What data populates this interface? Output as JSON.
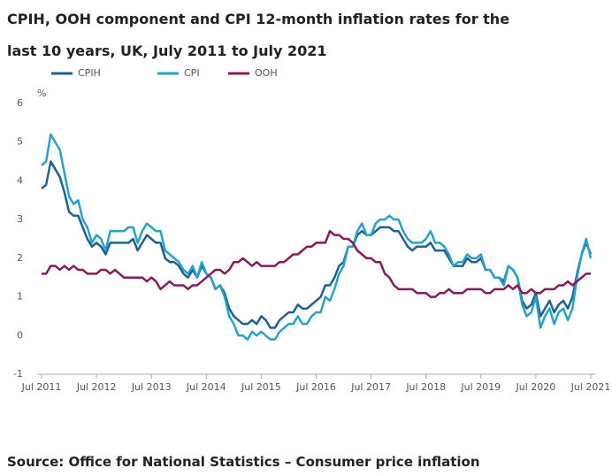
{
  "chart_data": {
    "type": "line",
    "title": "CPIH, OOH component and CPI 12-month inflation rates for the last 10 years, UK, July 2011 to July 2021",
    "y_label": "%",
    "source": "Source: Office for National Statistics – Consumer price inflation",
    "categories": [
      "Jul 2011",
      null,
      null,
      null,
      null,
      null,
      null,
      null,
      null,
      null,
      null,
      null,
      "Jul 2012",
      null,
      null,
      null,
      null,
      null,
      null,
      null,
      null,
      null,
      null,
      null,
      "Jul 2013",
      null,
      null,
      null,
      null,
      null,
      null,
      null,
      null,
      null,
      null,
      null,
      "Jul 2014",
      null,
      null,
      null,
      null,
      null,
      null,
      null,
      null,
      null,
      null,
      null,
      "Jul 2015",
      null,
      null,
      null,
      null,
      null,
      null,
      null,
      null,
      null,
      null,
      null,
      "Jul 2016",
      null,
      null,
      null,
      null,
      null,
      null,
      null,
      null,
      null,
      null,
      null,
      "Jul 2017",
      null,
      null,
      null,
      null,
      null,
      null,
      null,
      null,
      null,
      null,
      null,
      "Jul 2018",
      null,
      null,
      null,
      null,
      null,
      null,
      null,
      null,
      null,
      null,
      null,
      "Jul 2019",
      null,
      null,
      null,
      null,
      null,
      null,
      null,
      null,
      null,
      null,
      null,
      "Jul 2020",
      null,
      null,
      null,
      null,
      null,
      null,
      null,
      null,
      null,
      null,
      null,
      "Jul 2021"
    ],
    "ylim": [
      -1,
      6
    ],
    "yticks": [
      -1,
      0,
      1,
      2,
      3,
      4,
      5,
      6
    ],
    "grid": false,
    "series": [
      {
        "name": "CPIH",
        "color": "#206095",
        "values": [
          3.8,
          3.9,
          4.5,
          4.3,
          4.1,
          3.7,
          3.2,
          3.1,
          3.1,
          2.8,
          2.5,
          2.3,
          2.4,
          2.3,
          2.1,
          2.4,
          2.4,
          2.4,
          2.4,
          2.4,
          2.5,
          2.2,
          2.4,
          2.6,
          2.5,
          2.4,
          2.4,
          2.0,
          1.9,
          1.9,
          1.8,
          1.6,
          1.5,
          1.7,
          1.5,
          1.8,
          1.6,
          1.5,
          1.2,
          1.3,
          1.1,
          0.7,
          0.5,
          0.4,
          0.3,
          0.3,
          0.4,
          0.3,
          0.5,
          0.4,
          0.2,
          0.2,
          0.4,
          0.5,
          0.6,
          0.6,
          0.8,
          0.7,
          0.7,
          0.8,
          0.9,
          1.0,
          1.3,
          1.3,
          1.5,
          1.8,
          1.9,
          2.3,
          2.3,
          2.6,
          2.7,
          2.6,
          2.6,
          2.7,
          2.8,
          2.8,
          2.8,
          2.7,
          2.7,
          2.5,
          2.3,
          2.2,
          2.3,
          2.3,
          2.3,
          2.4,
          2.2,
          2.2,
          2.2,
          2.0,
          1.8,
          1.8,
          1.8,
          2.0,
          1.9,
          1.9,
          2.0,
          1.7,
          1.7,
          1.5,
          1.5,
          1.4,
          1.8,
          1.7,
          1.5,
          0.9,
          0.7,
          0.8,
          1.1,
          0.5,
          0.7,
          0.9,
          0.6,
          0.8,
          0.9,
          0.7,
          1.0,
          1.6,
          2.1,
          2.4,
          2.1
        ]
      },
      {
        "name": "CPI",
        "color": "#27a0cc",
        "values": [
          4.4,
          4.5,
          5.2,
          5.0,
          4.8,
          4.2,
          3.6,
          3.4,
          3.5,
          3.0,
          2.8,
          2.4,
          2.6,
          2.5,
          2.2,
          2.7,
          2.7,
          2.7,
          2.7,
          2.8,
          2.8,
          2.4,
          2.7,
          2.9,
          2.8,
          2.7,
          2.7,
          2.2,
          2.1,
          2.0,
          1.9,
          1.7,
          1.6,
          1.8,
          1.5,
          1.9,
          1.6,
          1.5,
          1.2,
          1.3,
          1.0,
          0.5,
          0.3,
          0.0,
          0.0,
          -0.1,
          0.1,
          0.0,
          0.1,
          0.0,
          -0.1,
          -0.1,
          0.1,
          0.2,
          0.3,
          0.3,
          0.5,
          0.3,
          0.3,
          0.5,
          0.6,
          0.6,
          1.0,
          0.9,
          1.2,
          1.6,
          1.8,
          2.3,
          2.3,
          2.7,
          2.9,
          2.6,
          2.6,
          2.9,
          3.0,
          3.0,
          3.1,
          3.0,
          3.0,
          2.7,
          2.5,
          2.4,
          2.4,
          2.4,
          2.5,
          2.7,
          2.4,
          2.4,
          2.3,
          2.1,
          1.8,
          1.9,
          1.9,
          2.1,
          2.0,
          2.0,
          2.1,
          1.7,
          1.7,
          1.5,
          1.5,
          1.3,
          1.8,
          1.7,
          1.5,
          0.8,
          0.5,
          0.6,
          1.0,
          0.2,
          0.5,
          0.7,
          0.3,
          0.6,
          0.7,
          0.4,
          0.7,
          1.5,
          2.1,
          2.5,
          2.0
        ]
      },
      {
        "name": "OOH",
        "color": "#871a5b",
        "values": [
          1.6,
          1.6,
          1.8,
          1.8,
          1.7,
          1.8,
          1.7,
          1.8,
          1.7,
          1.7,
          1.6,
          1.6,
          1.6,
          1.7,
          1.7,
          1.6,
          1.7,
          1.6,
          1.5,
          1.5,
          1.5,
          1.5,
          1.5,
          1.4,
          1.5,
          1.4,
          1.2,
          1.3,
          1.4,
          1.3,
          1.3,
          1.3,
          1.2,
          1.3,
          1.3,
          1.4,
          1.5,
          1.6,
          1.7,
          1.7,
          1.6,
          1.7,
          1.9,
          1.9,
          2.0,
          1.9,
          1.8,
          1.9,
          1.8,
          1.8,
          1.8,
          1.8,
          1.9,
          1.9,
          2.0,
          2.1,
          2.1,
          2.2,
          2.3,
          2.3,
          2.4,
          2.4,
          2.4,
          2.7,
          2.6,
          2.6,
          2.5,
          2.5,
          2.4,
          2.2,
          2.1,
          2.0,
          2.0,
          1.9,
          1.9,
          1.6,
          1.5,
          1.3,
          1.2,
          1.2,
          1.2,
          1.2,
          1.1,
          1.1,
          1.1,
          1.0,
          1.0,
          1.1,
          1.1,
          1.2,
          1.1,
          1.1,
          1.1,
          1.2,
          1.2,
          1.2,
          1.2,
          1.1,
          1.1,
          1.2,
          1.2,
          1.2,
          1.3,
          1.2,
          1.3,
          1.1,
          1.1,
          1.2,
          1.1,
          1.1,
          1.2,
          1.2,
          1.2,
          1.3,
          1.3,
          1.4,
          1.3,
          1.4,
          1.5,
          1.6,
          1.6
        ]
      }
    ]
  }
}
